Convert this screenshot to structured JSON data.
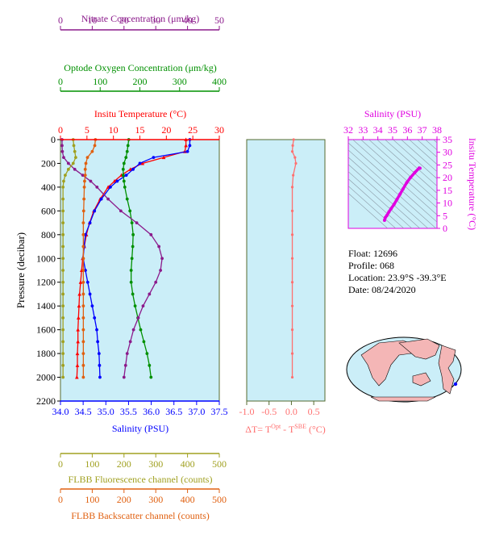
{
  "colors": {
    "nitrate": "#8b1a8b",
    "oxygen": "#009000",
    "temperature": "#ff0000",
    "salinity": "#0000ff",
    "fluorescence": "#a0a020",
    "backscatter": "#e06010",
    "delta": "#ff7070",
    "inset_axis": "#e000e0",
    "panel_bg": "#cbeef8"
  },
  "info": {
    "float": "Float:  12696",
    "profile": "Profile:  068",
    "location": "Location:  23.9°S  -39.3°E",
    "date": "Date:  08/24/2020"
  },
  "chart_data": [
    {
      "type": "line",
      "title": "",
      "ylabel": "Pressure (decibar)",
      "ylim": [
        2200,
        0
      ],
      "yticks": [
        "0",
        "200",
        "400",
        "600",
        "800",
        "1000",
        "1200",
        "1400",
        "1600",
        "1800",
        "2000",
        "2200"
      ],
      "pressure": [
        0,
        50,
        100,
        150,
        200,
        250,
        300,
        350,
        400,
        500,
        600,
        700,
        800,
        900,
        1000,
        1100,
        1200,
        1300,
        1400,
        1500,
        1600,
        1700,
        1800,
        1900,
        2000
      ],
      "axes": [
        {
          "id": "nitrate",
          "label": "Nitrate Concentration (μm/kg)",
          "range": [
            0,
            50
          ],
          "ticks": [
            "0",
            "10",
            "20",
            "30",
            "40",
            "50"
          ]
        },
        {
          "id": "oxygen",
          "label": "Optode Oxygen Concentration (μm/kg)",
          "range": [
            0,
            400
          ],
          "ticks": [
            "0",
            "100",
            "200",
            "300",
            "400"
          ]
        },
        {
          "id": "temperature",
          "label": "Insitu Temperature (°C)",
          "range": [
            0,
            30
          ],
          "ticks": [
            "0",
            "5",
            "10",
            "15",
            "20",
            "25",
            "30"
          ]
        },
        {
          "id": "salinity",
          "label": "Salinity (PSU)",
          "range": [
            34.0,
            37.5
          ],
          "ticks": [
            "34.0",
            "34.5",
            "35.0",
            "35.5",
            "36.0",
            "36.5",
            "37.0",
            "37.5"
          ]
        },
        {
          "id": "fluorescence",
          "label": "FLBB Fluorescence channel (counts)",
          "range": [
            0,
            500
          ],
          "ticks": [
            "0",
            "100",
            "200",
            "300",
            "400",
            "500"
          ]
        },
        {
          "id": "backscatter",
          "label": "FLBB Backscatter channel (counts)",
          "range": [
            0,
            500
          ],
          "ticks": [
            "0",
            "100",
            "200",
            "300",
            "400",
            "500"
          ]
        }
      ],
      "series": [
        {
          "axis": "temperature",
          "values": [
            23.7,
            23.7,
            23.5,
            19.5,
            15.5,
            13.2,
            11.5,
            10.2,
            9.0,
            7.5,
            6.3,
            5.5,
            4.9,
            4.5,
            4.2,
            4.0,
            3.8,
            3.6,
            3.5,
            3.4,
            3.3,
            3.3,
            3.2,
            3.2,
            3.1
          ]
        },
        {
          "axis": "salinity",
          "values": [
            36.85,
            36.85,
            36.8,
            36.05,
            35.75,
            35.6,
            35.45,
            35.25,
            35.1,
            34.9,
            34.75,
            34.65,
            34.55,
            34.52,
            34.5,
            34.55,
            34.6,
            34.65,
            34.7,
            34.75,
            34.8,
            34.82,
            34.85,
            34.86,
            34.87
          ]
        },
        {
          "axis": "oxygen",
          "values": [
            172,
            170,
            168,
            165,
            160,
            158,
            158,
            160,
            162,
            168,
            175,
            180,
            183,
            182,
            180,
            178,
            178,
            182,
            188,
            195,
            202,
            210,
            218,
            224,
            228
          ]
        },
        {
          "axis": "nitrate",
          "values": [
            0.5,
            0.5,
            0.6,
            1.0,
            2.5,
            4.5,
            7.0,
            9.5,
            11.5,
            15.0,
            19.0,
            24.0,
            28.5,
            31.0,
            32.0,
            31.5,
            30.0,
            28.0,
            26.0,
            24.5,
            23.0,
            22.0,
            21.0,
            20.5,
            20.0
          ]
        },
        {
          "axis": "fluorescence",
          "values": [
            40,
            42,
            45,
            48,
            40,
            25,
            15,
            10,
            8,
            8,
            8,
            8,
            8,
            8,
            8,
            8,
            8,
            8,
            8,
            8,
            8,
            8,
            8,
            8,
            8
          ]
        },
        {
          "axis": "backscatter",
          "values": [
            110,
            108,
            100,
            85,
            80,
            78,
            78,
            76,
            75,
            74,
            73,
            72,
            72,
            72,
            72,
            72,
            72,
            72,
            72,
            72,
            72,
            72,
            72,
            72,
            72
          ]
        }
      ]
    },
    {
      "type": "line",
      "xlabel": "ΔT= TOpt - TSBE (°C)",
      "xlim": [
        -1.0,
        0.75
      ],
      "ticks": [
        "-1.0",
        "-0.5",
        "0.0",
        "0.5"
      ],
      "ylim": [
        2200,
        0
      ],
      "series": [
        {
          "name": "",
          "pressure": [
            0,
            50,
            100,
            150,
            200,
            300,
            400,
            600,
            800,
            1000,
            1200,
            1400,
            1600,
            1800,
            2000
          ],
          "values": [
            0.05,
            0.03,
            0.02,
            0.08,
            0.1,
            0.04,
            0.02,
            0.02,
            0.02,
            0.02,
            0.02,
            0.02,
            0.02,
            0.02,
            0.02
          ]
        }
      ]
    },
    {
      "type": "scatter",
      "title": "Salinity (PSU)",
      "ylabel": "Insitu Temperature (°C)",
      "xlim": [
        32,
        38
      ],
      "ylim": [
        0,
        35
      ],
      "xticks": [
        "32",
        "33",
        "34",
        "35",
        "36",
        "37",
        "38"
      ],
      "yticks": [
        "0",
        "5",
        "10",
        "15",
        "20",
        "25",
        "30",
        "35"
      ],
      "points": [
        [
          34.45,
          3.2
        ],
        [
          34.5,
          4.2
        ],
        [
          34.6,
          5.0
        ],
        [
          34.75,
          6.5
        ],
        [
          34.9,
          7.8
        ],
        [
          35.1,
          9.5
        ],
        [
          35.3,
          11.5
        ],
        [
          35.5,
          13.5
        ],
        [
          35.7,
          15.5
        ],
        [
          35.95,
          18.0
        ],
        [
          36.2,
          20.0
        ],
        [
          36.5,
          22.0
        ],
        [
          36.8,
          23.8
        ],
        [
          36.85,
          23.7
        ]
      ]
    }
  ]
}
